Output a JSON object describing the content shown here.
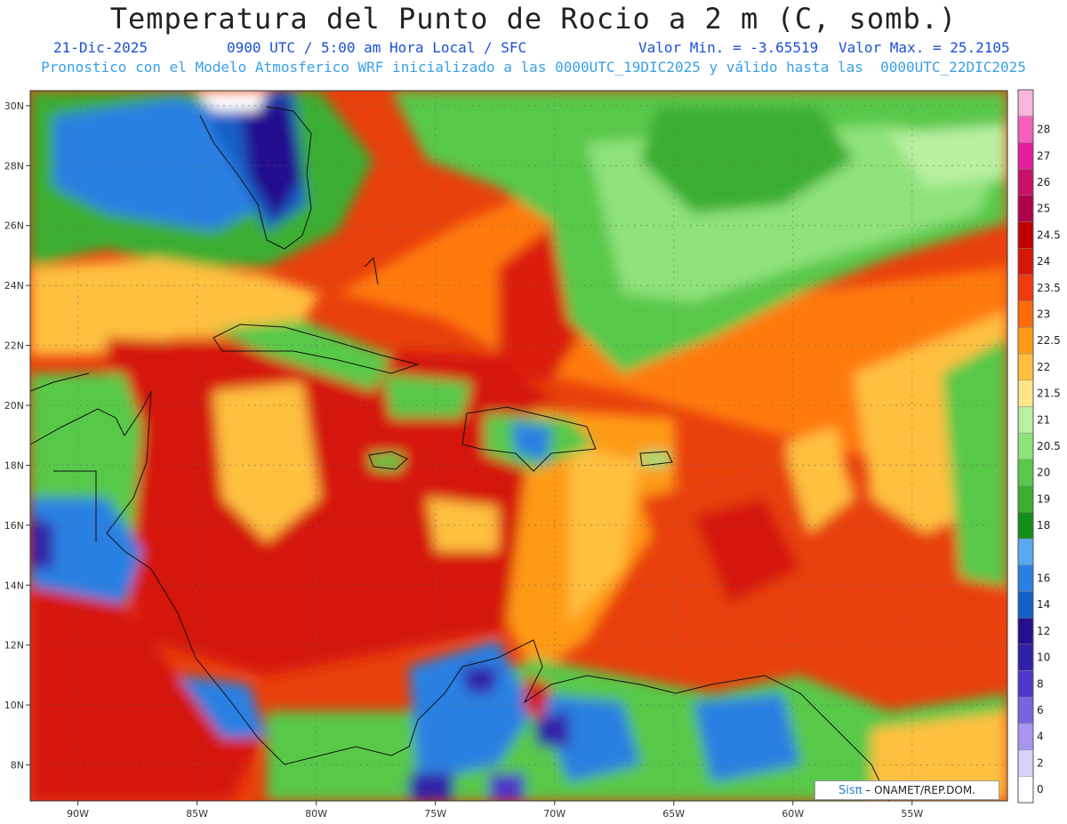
{
  "title": "Temperatura del Punto de Rocio a 2 m (C, somb.)",
  "date": "21-Dic-2025",
  "time_info": "0900 UTC / 5:00 am Hora Local / SFC",
  "min_value": "Valor Min. = -3.65519",
  "max_value": "Valor Max. = 25.2105",
  "model_info": "Pronostico con el Modelo Atmosferico WRF inicializado a las 0000UTC_19DIC2025 y válido hasta las  0000UTC_22DIC2025",
  "credit": {
    "logo": "Sisπ",
    "text": "– ONAMET/REP.DOM."
  },
  "x_axis": {
    "range": [
      -92,
      -51
    ],
    "ticks": [
      {
        "value": -90,
        "label": "90W"
      },
      {
        "value": -85,
        "label": "85W"
      },
      {
        "value": -80,
        "label": "80W"
      },
      {
        "value": -75,
        "label": "75W"
      },
      {
        "value": -70,
        "label": "70W"
      },
      {
        "value": -65,
        "label": "65W"
      },
      {
        "value": -60,
        "label": "60W"
      },
      {
        "value": -55,
        "label": "55W"
      }
    ]
  },
  "y_axis": {
    "range": [
      6.8,
      30.5
    ],
    "ticks": [
      {
        "value": 30,
        "label": "30N"
      },
      {
        "value": 28,
        "label": "28N"
      },
      {
        "value": 26,
        "label": "26N"
      },
      {
        "value": 24,
        "label": "24N"
      },
      {
        "value": 22,
        "label": "22N"
      },
      {
        "value": 20,
        "label": "20N"
      },
      {
        "value": 18,
        "label": "18N"
      },
      {
        "value": 16,
        "label": "16N"
      },
      {
        "value": 14,
        "label": "14N"
      },
      {
        "value": 12,
        "label": "12N"
      },
      {
        "value": 10,
        "label": "10N"
      },
      {
        "value": 8,
        "label": "8N"
      }
    ]
  },
  "grid": true,
  "colorbar": [
    {
      "label": "0",
      "color": "#ffffff"
    },
    {
      "label": "2",
      "color": "#d6d2f8"
    },
    {
      "label": "4",
      "color": "#a995f0"
    },
    {
      "label": "6",
      "color": "#7a63e0"
    },
    {
      "label": "8",
      "color": "#5038c6"
    },
    {
      "label": "10",
      "color": "#3120a8"
    },
    {
      "label": "12",
      "color": "#23108f"
    },
    {
      "label": "14",
      "color": "#1360c8"
    },
    {
      "label": "16",
      "color": "#2a80e2"
    },
    {
      "label": "",
      "color": "#58a8f0"
    },
    {
      "label": "18",
      "color": "#138e1a"
    },
    {
      "label": "19",
      "color": "#3bae30"
    },
    {
      "label": "20",
      "color": "#59c84a"
    },
    {
      "label": "20.5",
      "color": "#8ee27a"
    },
    {
      "label": "21",
      "color": "#b8f0a0"
    },
    {
      "label": "21.5",
      "color": "#ffe68a"
    },
    {
      "label": "22",
      "color": "#ffc040"
    },
    {
      "label": "22.5",
      "color": "#ff9a18"
    },
    {
      "label": "23",
      "color": "#ff6a08"
    },
    {
      "label": "23.5",
      "color": "#ee3a0c"
    },
    {
      "label": "24",
      "color": "#d51608"
    },
    {
      "label": "24.5",
      "color": "#c00000"
    },
    {
      "label": "25",
      "color": "#b0004a"
    },
    {
      "label": "26",
      "color": "#c8106a"
    },
    {
      "label": "27",
      "color": "#e21e9a"
    },
    {
      "label": "28",
      "color": "#f660bc"
    },
    {
      "label": "",
      "color": "#f8b4dc"
    }
  ]
}
